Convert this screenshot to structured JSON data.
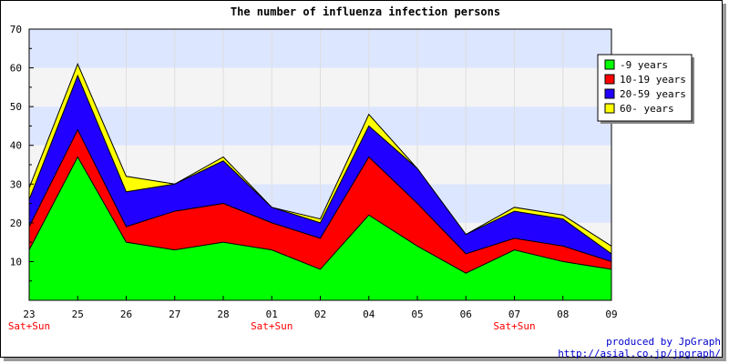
{
  "chart_data": {
    "type": "area",
    "stacked": true,
    "title": "The number of influenza infection persons",
    "categories": [
      "23",
      "25",
      "26",
      "27",
      "28",
      "01",
      "02",
      "04",
      "05",
      "06",
      "07",
      "08",
      "09"
    ],
    "weekend_marks": [
      {
        "category_index": 0,
        "label": "Sat+Sun"
      },
      {
        "category_index": 5,
        "label": "Sat+Sun"
      },
      {
        "category_index": 10,
        "label": "Sat+Sun"
      }
    ],
    "series": [
      {
        "name": "-9 years",
        "color": "#00ff00",
        "values": [
          13,
          37,
          15,
          13,
          15,
          13,
          8,
          22,
          14,
          7,
          13,
          10,
          8
        ]
      },
      {
        "name": "10-19 years",
        "color": "#ff0000",
        "values": [
          6,
          7,
          4,
          10,
          10,
          7,
          8,
          15,
          11,
          5,
          3,
          4,
          2
        ]
      },
      {
        "name": "20-59 years",
        "color": "#2200ff",
        "values": [
          7,
          14,
          9,
          7,
          11,
          4,
          4,
          8,
          9,
          5,
          7,
          7,
          2
        ]
      },
      {
        "name": "60- years",
        "color": "#ffff00",
        "values": [
          3,
          3,
          4,
          0,
          1,
          0,
          1,
          3,
          0,
          0,
          1,
          1,
          2
        ]
      }
    ],
    "ylim": [
      0,
      70
    ],
    "yticks": [
      10,
      20,
      30,
      40,
      50,
      60,
      70
    ],
    "grid": true,
    "legend_position": "top-right",
    "band_colors": [
      "#dde6ff",
      "#f4f4f4"
    ]
  },
  "footer": {
    "credit": "produced by JpGraph",
    "url": "http://asial.co.jp/jpgraph/"
  }
}
